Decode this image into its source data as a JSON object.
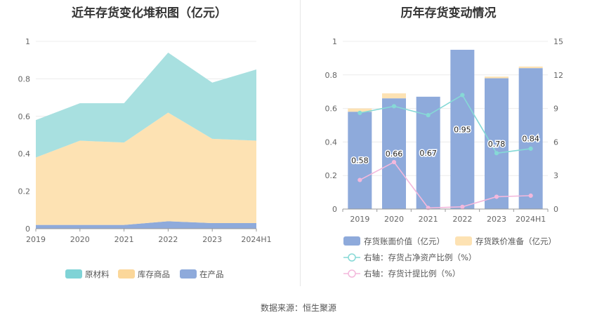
{
  "left_title": "近年存货变化堆积图（亿元）",
  "right_title": "历年存货变动情况",
  "source": "数据来源：恒生聚源",
  "chart_data": [
    {
      "type": "area",
      "stacked": true,
      "title": "近年存货变化堆积图（亿元）",
      "categories": [
        "2019",
        "2020",
        "2021",
        "2022",
        "2023",
        "2024H1"
      ],
      "ylim": [
        0,
        1
      ],
      "yticks": [
        "0",
        "0.2",
        "0.4",
        "0.6",
        "0.8",
        "1"
      ],
      "series": [
        {
          "name": "在产品",
          "color": "#8eaadb",
          "values": [
            0.02,
            0.02,
            0.02,
            0.04,
            0.03,
            0.03
          ]
        },
        {
          "name": "库存商品",
          "color": "#fde2b3",
          "values": [
            0.36,
            0.45,
            0.44,
            0.58,
            0.45,
            0.44
          ]
        },
        {
          "name": "原材料",
          "color": "#a8e0e0",
          "values": [
            0.2,
            0.2,
            0.21,
            0.32,
            0.3,
            0.38
          ]
        }
      ],
      "legend": [
        "原材料",
        "库存商品",
        "在产品"
      ],
      "legend_colors": [
        "#7fd3d6",
        "#fbd79a",
        "#8eaadb"
      ],
      "legend_position": "bottom"
    },
    {
      "type": "bar",
      "title": "历年存货变动情况",
      "categories": [
        "2019",
        "2020",
        "2021",
        "2022",
        "2023",
        "2024H1"
      ],
      "ylim": [
        0,
        1
      ],
      "yticks": [
        "0",
        "0.2",
        "0.4",
        "0.6",
        "0.8",
        "1"
      ],
      "y2lim": [
        0,
        15
      ],
      "y2ticks": [
        "0",
        "3",
        "6",
        "9",
        "12",
        "15"
      ],
      "series": [
        {
          "name": "存货账面价值（亿元）",
          "color": "#8eaadb",
          "values": [
            0.58,
            0.66,
            0.67,
            0.95,
            0.78,
            0.84
          ],
          "labels": [
            "0.58",
            "0.66",
            "0.67",
            "0.95",
            "0.78",
            "0.84"
          ]
        },
        {
          "name": "存货跌价准备（亿元）",
          "color": "#fde2b3",
          "values": [
            0.02,
            0.03,
            0.0,
            0.0,
            0.01,
            0.01
          ]
        },
        {
          "name": "右轴：存货占净资产比例（%）",
          "type": "line",
          "axis": "right",
          "color": "#86d9d6",
          "values": [
            8.6,
            9.2,
            8.4,
            10.2,
            5.0,
            5.4
          ]
        },
        {
          "name": "右轴：存货计提比例（%）",
          "type": "line",
          "axis": "right",
          "color": "#f3b8dc",
          "values": [
            2.6,
            4.2,
            0.1,
            0.2,
            1.1,
            1.2
          ]
        }
      ],
      "legend_position": "bottom"
    }
  ]
}
